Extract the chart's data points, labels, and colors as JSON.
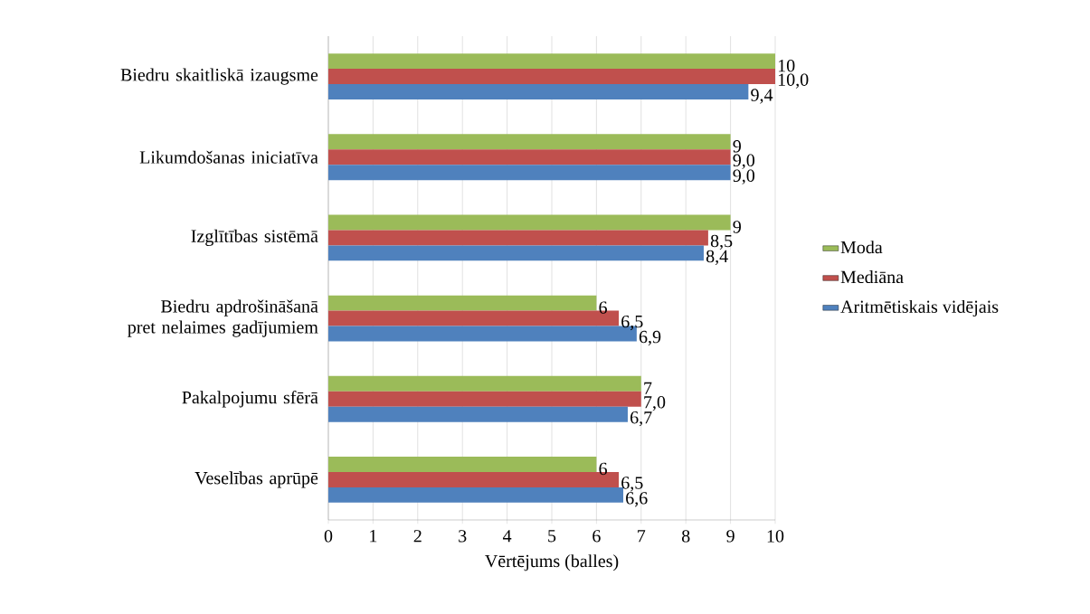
{
  "chart_data": {
    "type": "bar",
    "orientation": "horizontal",
    "categories": [
      "Biedru skaitliskā izaugsme",
      "Likumdošanas iniciatīva",
      "Izglītības sistēmā",
      "Biedru apdrošināšanā pret nelaimes gadījumiem",
      "Pakalpojumu sfērā",
      "Veselības aprūpē"
    ],
    "series": [
      {
        "name": "Moda",
        "color": "#9bbb59",
        "values": [
          10,
          9,
          9,
          6,
          7,
          6
        ],
        "value_labels": [
          "10",
          "9",
          "9",
          "6",
          "7",
          "6"
        ]
      },
      {
        "name": "Mediāna",
        "color": "#c0504d",
        "values": [
          10.0,
          9.0,
          8.5,
          6.5,
          7.0,
          6.5
        ],
        "value_labels": [
          "10,0",
          "9,0",
          "8,5",
          "6,5",
          "7,0",
          "6,5"
        ]
      },
      {
        "name": "Aritmētiskais vidējais",
        "color": "#4f81bd",
        "values": [
          9.4,
          9.0,
          8.4,
          6.9,
          6.7,
          6.6
        ],
        "value_labels": [
          "9,4",
          "9,0",
          "8,4",
          "6,9",
          "6,7",
          "6,6"
        ]
      }
    ],
    "xlim": [
      0,
      10
    ],
    "xticks": [
      0,
      1,
      2,
      3,
      4,
      5,
      6,
      7,
      8,
      9,
      10
    ],
    "xlabel": "Vērtējums (balles)",
    "grid": "x",
    "legend": "right"
  }
}
